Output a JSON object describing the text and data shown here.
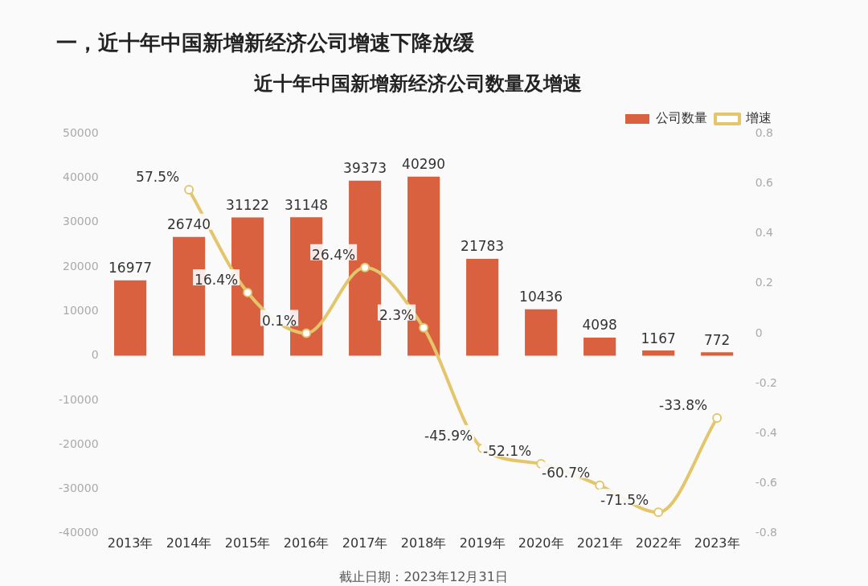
{
  "chart_data": {
    "type": "bar",
    "title": "一，近十年中国新增新经济公司增速下降放缓",
    "subtitle": "近十年中国新增新经济公司数量及增速",
    "categories": [
      "2013年",
      "2014年",
      "2015年",
      "2016年",
      "2017年",
      "2018年",
      "2019年",
      "2020年",
      "2021年",
      "2022年",
      "2023年"
    ],
    "series": [
      {
        "name": "公司数量",
        "color": "#d9613f",
        "values": [
          16977,
          26740,
          31122,
          31148,
          39373,
          40290,
          21783,
          10436,
          4098,
          1167,
          772
        ],
        "value_labels": [
          "16977",
          "26740",
          "31122",
          "31148",
          "39373",
          "40290",
          "21783",
          "10436",
          "4098",
          "1167",
          "772"
        ]
      },
      {
        "name": "增速",
        "type": "line",
        "axis": "y2",
        "color": "#e3c56c",
        "values": [
          null,
          0.575,
          0.164,
          0.001,
          0.264,
          0.023,
          -0.459,
          -0.521,
          -0.607,
          -0.715,
          -0.338
        ],
        "value_labels": [
          null,
          "57.5%",
          "16.4%",
          "0.1%",
          "26.4%",
          "2.3%",
          "-45.9%",
          "-52.1%",
          "-60.7%",
          "-71.5%",
          "-33.8%"
        ]
      }
    ],
    "ylim": [
      -40000,
      50000
    ],
    "yticks": [
      -40000,
      -30000,
      -20000,
      -10000,
      0,
      10000,
      20000,
      30000,
      40000,
      50000
    ],
    "y2lim": [
      -0.8,
      0.8
    ],
    "y2ticks": [
      -0.8,
      -0.6,
      -0.4,
      -0.2,
      0,
      0.2,
      0.4,
      0.6,
      0.8
    ],
    "legend": "top right",
    "grid": false,
    "marker": "circle",
    "annotations": [
      "截止日期：2023年12月31日"
    ]
  }
}
